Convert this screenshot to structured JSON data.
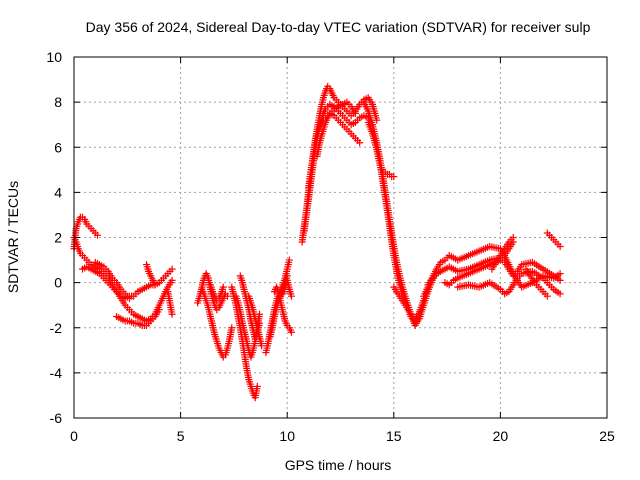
{
  "chart_data": {
    "type": "scatter",
    "title": "Day 356 of 2024, Sidereal Day-to-day VTEC variation (SDTVAR) for receiver sulp",
    "xlabel": "GPS time / hours",
    "ylabel": "SDTVAR / TECUs",
    "xlim": [
      0,
      25
    ],
    "ylim": [
      -6,
      10
    ],
    "xticks": [
      0,
      5,
      10,
      15,
      20,
      25
    ],
    "yticks": [
      -6,
      -4,
      -2,
      0,
      2,
      4,
      6,
      8,
      10
    ],
    "grid": true,
    "marker": "+",
    "series": [
      {
        "name": "SDTVAR",
        "color": "#ff0000",
        "segments": [
          {
            "x": [
              0.0,
              0.1,
              0.2,
              0.3,
              0.4,
              0.5,
              0.6,
              0.7,
              0.8,
              0.9,
              1.0,
              1.1
            ],
            "y": [
              1.5,
              2.4,
              2.7,
              2.9,
              2.9,
              2.8,
              2.6,
              2.5,
              2.4,
              2.3,
              2.2,
              2.1
            ]
          },
          {
            "x": [
              0.0,
              0.1,
              0.2,
              0.3,
              0.4,
              0.5,
              0.6,
              0.7,
              0.8,
              1.0,
              1.2,
              1.4,
              1.6,
              1.8,
              2.0,
              2.2,
              2.4,
              2.6,
              2.8,
              3.0,
              3.2,
              3.4,
              3.6,
              3.8,
              4.0,
              4.2,
              4.4,
              4.6
            ],
            "y": [
              2.0,
              1.8,
              1.5,
              1.3,
              1.2,
              1.1,
              1.0,
              0.9,
              0.8,
              0.7,
              0.6,
              0.4,
              0.2,
              -0.1,
              -0.4,
              -0.7,
              -1.0,
              -1.2,
              -1.4,
              -1.5,
              -1.6,
              -1.7,
              -1.6,
              -1.4,
              -1.0,
              -0.6,
              -0.2,
              0.1
            ]
          },
          {
            "x": [
              0.4,
              0.6,
              0.8,
              1.0,
              1.2,
              1.4,
              1.6,
              1.8,
              2.0,
              2.2,
              2.4,
              2.6,
              2.8,
              3.0,
              3.2,
              3.4,
              3.6,
              3.8,
              4.0,
              4.2,
              4.4,
              4.6
            ],
            "y": [
              0.6,
              0.7,
              0.6,
              0.5,
              0.4,
              0.2,
              0.0,
              -0.2,
              -0.4,
              -0.6,
              -0.7,
              -0.6,
              -0.6,
              -0.4,
              -0.3,
              -0.2,
              -0.1,
              -0.1,
              0.0,
              0.2,
              0.4,
              0.6
            ]
          },
          {
            "x": [
              1.0,
              1.2,
              1.4,
              1.6,
              1.8,
              2.0,
              2.2,
              2.4,
              2.6
            ],
            "y": [
              0.9,
              0.8,
              0.7,
              0.5,
              0.2,
              0.0,
              -0.3,
              -0.5,
              -0.7
            ]
          },
          {
            "x": [
              2.0,
              2.2,
              2.4,
              2.6,
              2.8,
              3.0,
              3.2,
              3.4,
              3.6,
              3.8,
              4.0
            ],
            "y": [
              -1.5,
              -1.6,
              -1.7,
              -1.7,
              -1.8,
              -1.8,
              -1.9,
              -1.9,
              -1.7,
              -1.5,
              -1.2
            ]
          },
          {
            "x": [
              3.4,
              3.5,
              3.6,
              3.7,
              3.8
            ],
            "y": [
              0.8,
              0.5,
              0.3,
              0.1,
              -0.1
            ]
          },
          {
            "x": [
              4.4,
              4.5,
              4.6
            ],
            "y": [
              -0.4,
              -0.9,
              -1.4
            ]
          },
          {
            "x": [
              5.8,
              5.9,
              6.0,
              6.1,
              6.2,
              6.3,
              6.4,
              6.5,
              6.6,
              6.7,
              6.8,
              6.9,
              7.0,
              7.1,
              7.2
            ],
            "y": [
              -0.9,
              -0.6,
              -0.2,
              0.2,
              0.4,
              0.2,
              -0.3,
              -0.7,
              -1.0,
              -1.2,
              -1.1,
              -0.9,
              -0.7,
              -0.5,
              -0.6
            ]
          },
          {
            "x": [
              6.0,
              6.1,
              6.2,
              6.3,
              6.4,
              6.5,
              6.6,
              6.7,
              6.8,
              6.9,
              7.0,
              7.1,
              7.2,
              7.3,
              7.4
            ],
            "y": [
              -0.3,
              -0.5,
              -0.8,
              -1.1,
              -1.5,
              -1.9,
              -2.3,
              -2.6,
              -2.9,
              -3.1,
              -3.3,
              -3.2,
              -2.9,
              -2.5,
              -2.0
            ]
          },
          {
            "x": [
              6.4,
              6.5,
              6.6,
              6.7,
              6.8,
              6.9,
              7.0
            ],
            "y": [
              -0.1,
              -0.4,
              -0.6,
              -0.8,
              -0.7,
              -0.5,
              -0.2
            ]
          },
          {
            "x": [
              7.4,
              7.5,
              7.6,
              7.7,
              7.8,
              7.9,
              8.0,
              8.1,
              8.2,
              8.3,
              8.4,
              8.5,
              8.6
            ],
            "y": [
              -0.2,
              -0.6,
              -1.0,
              -1.5,
              -2.0,
              -2.6,
              -3.2,
              -3.8,
              -4.3,
              -4.6,
              -4.9,
              -5.1,
              -4.6
            ]
          },
          {
            "x": [
              7.6,
              7.7,
              7.8,
              7.9,
              8.0,
              8.1,
              8.2,
              8.3,
              8.4,
              8.5,
              8.6,
              8.7
            ],
            "y": [
              -0.6,
              -0.9,
              -1.3,
              -1.8,
              -2.2,
              -2.6,
              -3.0,
              -3.3,
              -3.0,
              -2.6,
              -2.2,
              -1.8
            ]
          },
          {
            "x": [
              7.8,
              7.9,
              8.0,
              8.1,
              8.2,
              8.3,
              8.4,
              8.5,
              8.6,
              8.7
            ],
            "y": [
              0.3,
              0.0,
              -0.4,
              -0.8,
              -1.2,
              -1.7,
              -2.1,
              -2.5,
              -2.0,
              -1.4
            ]
          },
          {
            "x": [
              8.2,
              8.3,
              8.4,
              8.5,
              8.6,
              8.7,
              8.8
            ],
            "y": [
              -0.6,
              -0.9,
              -1.2,
              -1.6,
              -2.0,
              -2.4,
              -2.8
            ]
          },
          {
            "x": [
              9.0,
              9.1,
              9.2,
              9.3,
              9.4,
              9.5,
              9.6,
              9.7,
              9.8,
              9.9,
              10.0,
              10.1
            ],
            "y": [
              -3.1,
              -2.7,
              -2.2,
              -1.7,
              -1.2,
              -0.8,
              -0.5,
              -0.3,
              -0.1,
              0.2,
              0.6,
              1.0
            ]
          },
          {
            "x": [
              9.2,
              9.3,
              9.4,
              9.5,
              9.6,
              9.7,
              9.8,
              9.9,
              10.0
            ],
            "y": [
              -2.4,
              -2.0,
              -1.5,
              -1.1,
              -0.8,
              -0.6,
              -0.3,
              0.0,
              0.3
            ]
          },
          {
            "x": [
              9.4,
              9.5,
              9.6,
              9.7,
              9.8,
              9.9,
              10.0,
              10.1,
              10.2
            ],
            "y": [
              -0.4,
              -0.2,
              -0.5,
              -0.9,
              -1.3,
              -1.7,
              -1.9,
              -2.0,
              -2.2
            ]
          },
          {
            "x": [
              9.8,
              9.9,
              10.0,
              10.1,
              10.2
            ],
            "y": [
              -0.5,
              -0.2,
              0.1,
              -0.3,
              -0.6
            ]
          },
          {
            "x": [
              10.7,
              10.8,
              10.9,
              11.0,
              11.1,
              11.2,
              11.3,
              11.4,
              11.5,
              11.6,
              11.7,
              11.8,
              11.9,
              12.0,
              12.2,
              12.4,
              12.6,
              12.8,
              13.0,
              13.2,
              13.4,
              13.6,
              13.8,
              14.0,
              14.2
            ],
            "y": [
              1.8,
              2.5,
              3.2,
              4.0,
              4.8,
              5.5,
              6.2,
              6.8,
              7.3,
              7.8,
              8.2,
              8.5,
              8.7,
              8.6,
              8.2,
              8.0,
              7.8,
              7.6,
              7.4,
              7.6,
              7.9,
              8.1,
              8.2,
              7.9,
              7.2
            ]
          },
          {
            "x": [
              10.8,
              10.9,
              11.0,
              11.1,
              11.2,
              11.3,
              11.4,
              11.5,
              11.6,
              11.7,
              11.8,
              11.9,
              12.0,
              12.2,
              12.4,
              12.6,
              12.8,
              13.0,
              13.2,
              13.4,
              13.6,
              13.8,
              14.0
            ],
            "y": [
              2.3,
              3.0,
              3.7,
              4.4,
              5.1,
              5.8,
              6.4,
              6.9,
              7.2,
              7.5,
              7.7,
              7.8,
              7.9,
              7.8,
              7.6,
              7.4,
              7.2,
              7.0,
              7.1,
              7.3,
              7.4,
              7.3,
              7.0
            ]
          },
          {
            "x": [
              11.0,
              11.1,
              11.2,
              11.3,
              11.4,
              11.5,
              11.6,
              11.7,
              11.8,
              11.9,
              12.0,
              12.2,
              12.4,
              12.6,
              12.8,
              13.0,
              13.2,
              13.4
            ],
            "y": [
              4.2,
              4.9,
              5.5,
              6.0,
              6.5,
              6.8,
              7.0,
              7.2,
              7.3,
              7.4,
              7.5,
              7.4,
              7.2,
              7.0,
              6.8,
              6.6,
              6.4,
              6.2
            ]
          },
          {
            "x": [
              11.4,
              11.5,
              11.6,
              11.7,
              11.8,
              11.9,
              12.0,
              12.2,
              12.4,
              12.6,
              12.8,
              13.0,
              13.2
            ],
            "y": [
              5.6,
              6.1,
              6.5,
              6.8,
              7.1,
              7.3,
              7.5,
              7.7,
              7.8,
              7.9,
              8.0,
              7.8,
              7.5
            ]
          },
          {
            "x": [
              13.6,
              13.8,
              14.0,
              14.2,
              14.4,
              14.6,
              14.8,
              15.0,
              15.2,
              15.4,
              15.6,
              15.8,
              16.0,
              16.2,
              16.4,
              16.6,
              16.8,
              17.0
            ],
            "y": [
              8.0,
              7.6,
              7.0,
              6.2,
              5.2,
              4.0,
              2.8,
              1.6,
              0.6,
              -0.2,
              -0.8,
              -1.4,
              -1.9,
              -1.6,
              -1.0,
              -0.4,
              0.1,
              0.4
            ]
          },
          {
            "x": [
              13.8,
              14.0,
              14.2,
              14.4,
              14.6,
              14.8,
              15.0,
              15.2,
              15.4,
              15.6,
              15.8,
              16.0,
              16.2,
              16.4,
              16.6
            ],
            "y": [
              7.1,
              6.6,
              5.9,
              5.0,
              3.8,
              2.5,
              1.2,
              0.2,
              -0.5,
              -1.0,
              -1.5,
              -1.8,
              -1.4,
              -0.8,
              -0.3
            ]
          },
          {
            "x": [
              14.4,
              14.5,
              14.6,
              14.7,
              14.8,
              14.9,
              15.0
            ],
            "y": [
              5.0,
              4.9,
              4.9,
              4.8,
              4.8,
              4.7,
              4.7
            ]
          },
          {
            "x": [
              15.0,
              15.2,
              15.4,
              15.6,
              15.8,
              16.0,
              16.2,
              16.4
            ],
            "y": [
              -0.2,
              -0.5,
              -0.8,
              -1.1,
              -1.4,
              -1.6,
              -1.3,
              -0.8
            ]
          },
          {
            "x": [
              16.4,
              16.6,
              16.8,
              17.0,
              17.2,
              17.4,
              17.6,
              17.8,
              18.0,
              18.5,
              19.0,
              19.5,
              20.0,
              20.2,
              20.4,
              20.6,
              20.8,
              21.0,
              21.5,
              22.0,
              22.5,
              22.8
            ],
            "y": [
              -0.6,
              -0.2,
              0.2,
              0.6,
              0.9,
              1.0,
              1.2,
              1.1,
              1.0,
              1.2,
              1.4,
              1.6,
              1.5,
              1.2,
              0.8,
              0.4,
              0.1,
              -0.2,
              0.0,
              0.3,
              0.2,
              0.4
            ]
          },
          {
            "x": [
              16.6,
              16.8,
              17.0,
              17.2,
              17.4,
              17.6,
              17.8,
              18.0,
              18.5,
              19.0,
              19.5,
              20.0,
              20.2,
              20.4,
              20.6,
              20.8,
              21.0,
              21.5,
              22.0,
              22.5,
              22.8
            ],
            "y": [
              -0.1,
              0.2,
              0.4,
              0.5,
              0.6,
              0.7,
              0.6,
              0.5,
              0.6,
              0.8,
              1.0,
              1.1,
              0.9,
              0.6,
              0.3,
              0.5,
              0.8,
              0.9,
              0.6,
              0.3,
              0.1
            ]
          },
          {
            "x": [
              17.4,
              17.6,
              17.8,
              18.0,
              18.5,
              19.0,
              19.5,
              20.0,
              20.2,
              20.4,
              20.6
            ],
            "y": [
              0.0,
              -0.1,
              0.1,
              0.2,
              0.4,
              0.6,
              0.8,
              1.0,
              1.2,
              1.5,
              1.8
            ]
          },
          {
            "x": [
              18.0,
              18.5,
              19.0,
              19.5,
              20.0,
              20.2,
              20.4,
              20.6,
              20.8,
              21.0,
              21.5,
              22.0,
              22.5,
              22.8
            ],
            "y": [
              -0.2,
              -0.1,
              -0.2,
              0.0,
              -0.3,
              -0.5,
              -0.4,
              -0.1,
              0.2,
              0.4,
              0.5,
              0.2,
              -0.3,
              -0.5
            ]
          },
          {
            "x": [
              19.6,
              19.8,
              20.0,
              20.2,
              20.4,
              20.6
            ],
            "y": [
              0.6,
              0.9,
              1.2,
              1.5,
              1.8,
              2.0
            ]
          },
          {
            "x": [
              22.2,
              22.4,
              22.6,
              22.8
            ],
            "y": [
              2.2,
              2.0,
              1.8,
              1.6
            ]
          },
          {
            "x": [
              21.2,
              21.4,
              21.6,
              21.8,
              22.0,
              22.2
            ],
            "y": [
              0.6,
              0.3,
              0.0,
              -0.2,
              -0.4,
              -0.6
            ]
          }
        ]
      }
    ]
  }
}
